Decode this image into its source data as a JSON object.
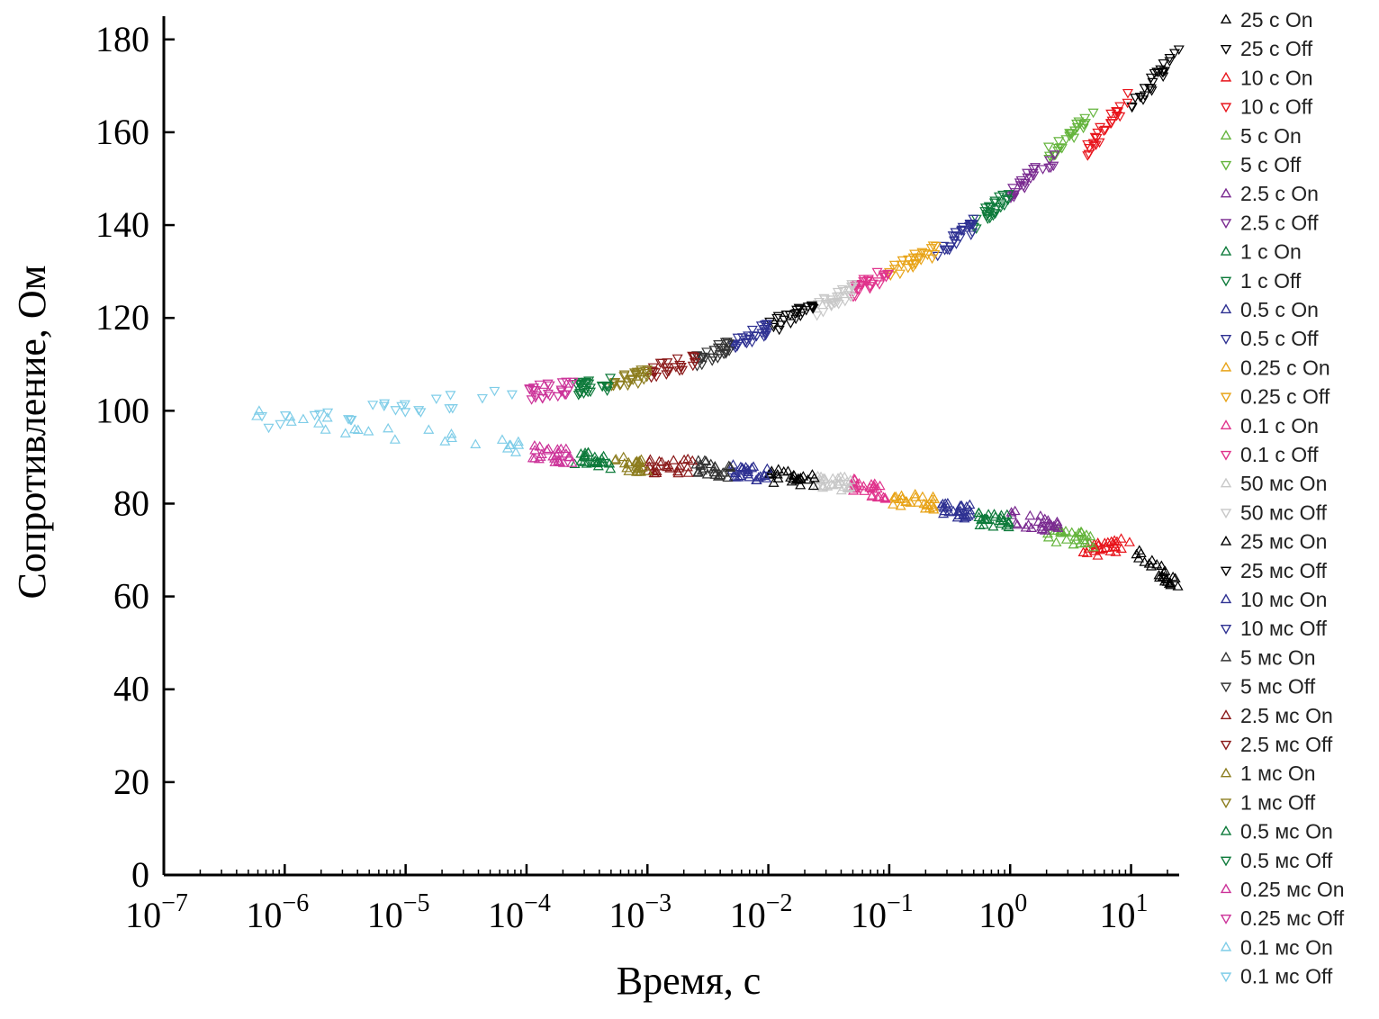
{
  "chart_data": {
    "type": "scatter",
    "xlabel": "Время, с",
    "ylabel": "Сопротивление, Ом",
    "x_scale": "log",
    "xlim": [
      1e-07,
      25
    ],
    "ylim": [
      0,
      185
    ],
    "x_ticks": [
      {
        "value": 1e-07,
        "base": "10",
        "exp": "−7"
      },
      {
        "value": 1e-06,
        "base": "10",
        "exp": "−6"
      },
      {
        "value": 1e-05,
        "base": "10",
        "exp": "−5"
      },
      {
        "value": 0.0001,
        "base": "10",
        "exp": "−4"
      },
      {
        "value": 0.001,
        "base": "10",
        "exp": "−3"
      },
      {
        "value": 0.01,
        "base": "10",
        "exp": "−2"
      },
      {
        "value": 0.1,
        "base": "10",
        "exp": "−1"
      },
      {
        "value": 1,
        "base": "10",
        "exp": "0"
      },
      {
        "value": 10,
        "base": "10",
        "exp": "1"
      }
    ],
    "y_ticks": [
      0,
      20,
      40,
      60,
      80,
      100,
      120,
      140,
      160,
      180
    ],
    "grid": false,
    "legend_position": "right",
    "series": [
      {
        "name": "25 с On",
        "color": "#000000",
        "marker": "up",
        "x_range": [
          10,
          25
        ],
        "y_start": 70,
        "y_end": 62
      },
      {
        "name": "25 с Off",
        "color": "#000000",
        "marker": "down",
        "x_range": [
          10,
          25
        ],
        "y_start": 165,
        "y_end": 178
      },
      {
        "name": "10 с On",
        "color": "#e8141b",
        "marker": "up",
        "x_range": [
          4,
          10
        ],
        "y_start": 70,
        "y_end": 71
      },
      {
        "name": "10 с Off",
        "color": "#e8141b",
        "marker": "down",
        "x_range": [
          4,
          10
        ],
        "y_start": 155,
        "y_end": 168
      },
      {
        "name": "5 с On",
        "color": "#64b43c",
        "marker": "up",
        "x_range": [
          2,
          5
        ],
        "y_start": 73,
        "y_end": 72
      },
      {
        "name": "5 с Off",
        "color": "#64b43c",
        "marker": "down",
        "x_range": [
          2,
          5
        ],
        "y_start": 155,
        "y_end": 164
      },
      {
        "name": "2.5 с On",
        "color": "#7a2a90",
        "marker": "up",
        "x_range": [
          1,
          2.5
        ],
        "y_start": 77,
        "y_end": 75
      },
      {
        "name": "2.5 с Off",
        "color": "#7a2a90",
        "marker": "down",
        "x_range": [
          1,
          2.5
        ],
        "y_start": 147,
        "y_end": 155
      },
      {
        "name": "1 с On",
        "color": "#0d7a3a",
        "marker": "up",
        "x_range": [
          0.5,
          1
        ],
        "y_start": 77,
        "y_end": 76
      },
      {
        "name": "1 с Off",
        "color": "#0d7a3a",
        "marker": "down",
        "x_range": [
          0.5,
          1
        ],
        "y_start": 140,
        "y_end": 147
      },
      {
        "name": "0.5 с On",
        "color": "#2e3192",
        "marker": "up",
        "x_range": [
          0.25,
          0.5
        ],
        "y_start": 79,
        "y_end": 78
      },
      {
        "name": "0.5 с Off",
        "color": "#2e3192",
        "marker": "down",
        "x_range": [
          0.25,
          0.5
        ],
        "y_start": 134,
        "y_end": 140
      },
      {
        "name": "0.25 с On",
        "color": "#e8a317",
        "marker": "up",
        "x_range": [
          0.1,
          0.25
        ],
        "y_start": 81,
        "y_end": 80
      },
      {
        "name": "0.25 с Off",
        "color": "#e8a317",
        "marker": "down",
        "x_range": [
          0.1,
          0.25
        ],
        "y_start": 130,
        "y_end": 135
      },
      {
        "name": "0.1 с On",
        "color": "#e0338c",
        "marker": "up",
        "x_range": [
          0.05,
          0.1
        ],
        "y_start": 84,
        "y_end": 82
      },
      {
        "name": "0.1 с Off",
        "color": "#e0338c",
        "marker": "down",
        "x_range": [
          0.05,
          0.1
        ],
        "y_start": 126,
        "y_end": 130
      },
      {
        "name": "50 мс On",
        "color": "#c8c8c8",
        "marker": "up",
        "x_range": [
          0.025,
          0.05
        ],
        "y_start": 85,
        "y_end": 84
      },
      {
        "name": "50 мс Off",
        "color": "#c8c8c8",
        "marker": "down",
        "x_range": [
          0.025,
          0.05
        ],
        "y_start": 122,
        "y_end": 126
      },
      {
        "name": "25 мс On",
        "color": "#000000",
        "marker": "up",
        "x_range": [
          0.01,
          0.025
        ],
        "y_start": 86,
        "y_end": 85
      },
      {
        "name": "25 мс Off",
        "color": "#000000",
        "marker": "down",
        "x_range": [
          0.01,
          0.025
        ],
        "y_start": 118,
        "y_end": 123
      },
      {
        "name": "10 мс On",
        "color": "#2e3192",
        "marker": "up",
        "x_range": [
          0.005,
          0.01
        ],
        "y_start": 87,
        "y_end": 86
      },
      {
        "name": "10 мс Off",
        "color": "#2e3192",
        "marker": "down",
        "x_range": [
          0.005,
          0.01
        ],
        "y_start": 114,
        "y_end": 118
      },
      {
        "name": "5 мс On",
        "color": "#333333",
        "marker": "up",
        "x_range": [
          0.0025,
          0.005
        ],
        "y_start": 88,
        "y_end": 87
      },
      {
        "name": "5 мс Off",
        "color": "#333333",
        "marker": "down",
        "x_range": [
          0.0025,
          0.005
        ],
        "y_start": 111,
        "y_end": 114
      },
      {
        "name": "2.5 мс On",
        "color": "#8b1a1a",
        "marker": "up",
        "x_range": [
          0.001,
          0.0025
        ],
        "y_start": 88,
        "y_end": 88
      },
      {
        "name": "2.5 мс Off",
        "color": "#8b1a1a",
        "marker": "down",
        "x_range": [
          0.001,
          0.0025
        ],
        "y_start": 108,
        "y_end": 111
      },
      {
        "name": "1 мс On",
        "color": "#8c7d1e",
        "marker": "up",
        "x_range": [
          0.0005,
          0.001
        ],
        "y_start": 89,
        "y_end": 88
      },
      {
        "name": "1 мс Off",
        "color": "#8c7d1e",
        "marker": "down",
        "x_range": [
          0.0005,
          0.001
        ],
        "y_start": 106,
        "y_end": 108
      },
      {
        "name": "0.5 мс On",
        "color": "#0d7a3a",
        "marker": "up",
        "x_range": [
          0.00025,
          0.0005
        ],
        "y_start": 90,
        "y_end": 89
      },
      {
        "name": "0.5 мс Off",
        "color": "#0d7a3a",
        "marker": "down",
        "x_range": [
          0.00025,
          0.0005
        ],
        "y_start": 105,
        "y_end": 106
      },
      {
        "name": "0.25 мс On",
        "color": "#cc3399",
        "marker": "up",
        "x_range": [
          0.0001,
          0.00025
        ],
        "y_start": 91,
        "y_end": 90
      },
      {
        "name": "0.25 мс Off",
        "color": "#cc3399",
        "marker": "down",
        "x_range": [
          0.0001,
          0.00025
        ],
        "y_start": 104,
        "y_end": 105
      },
      {
        "name": "0.1 мс On",
        "color": "#7fcde8",
        "marker": "up",
        "x_range": [
          5e-07,
          0.0001
        ],
        "y_start": 99,
        "y_end": 92
      },
      {
        "name": "0.1 мс Off",
        "color": "#7fcde8",
        "marker": "down",
        "x_range": [
          5e-07,
          0.0001
        ],
        "y_start": 97,
        "y_end": 104
      }
    ]
  }
}
